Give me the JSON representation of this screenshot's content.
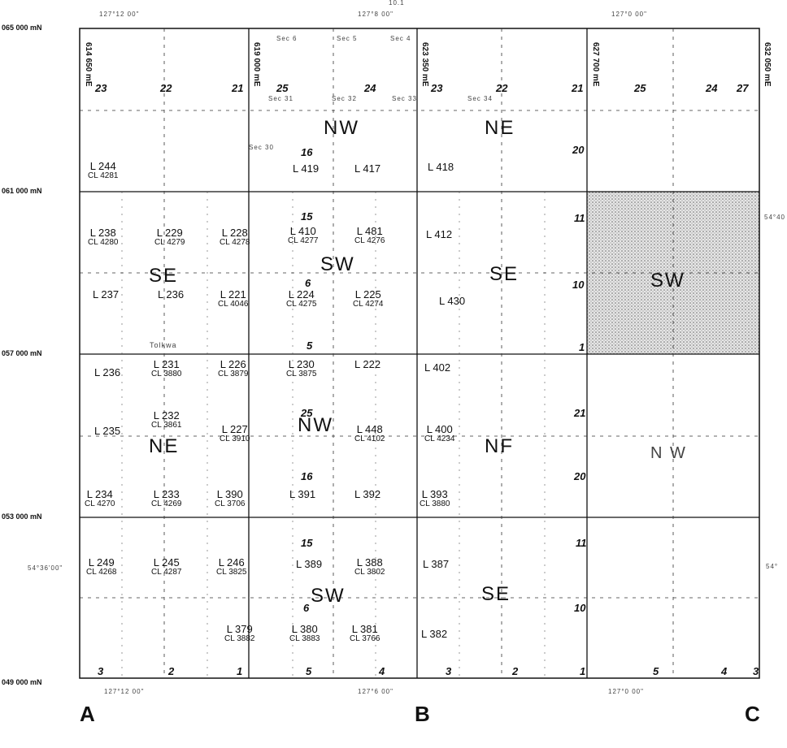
{
  "northings": [
    "065 000 mN",
    "061 000 mN",
    "057 000 mN",
    "053 000 mN",
    "049 000 mN"
  ],
  "eastings": [
    "614 650 mE",
    "619 000 mE",
    "623 350 mE",
    "627 700 mE",
    "632 050 mE"
  ],
  "longitudes_top": [
    "127°12 00\"",
    "127°8 00\"",
    "127°0 00\""
  ],
  "longitudes_bottom": [
    "127°12 00\"",
    "127°6 00\"",
    "127°0 00\""
  ],
  "top_note": "10.1",
  "latitude_left": "54°36'00\"",
  "latitude_right_upper": "54°40",
  "latitude_right_lower": "54°",
  "column_labels": [
    "A",
    "B",
    "C"
  ],
  "quadrants": [
    "NW",
    "NE",
    "SE",
    "SW",
    "SE",
    "SW",
    "NE",
    "NF",
    "NW",
    "SW",
    "SE"
  ],
  "section_numbers": [
    "23",
    "22",
    "21",
    "25",
    "24",
    "23",
    "22",
    "21",
    "25",
    "24",
    "27",
    "16",
    "20",
    "15",
    "11",
    "6",
    "10",
    "5",
    "1",
    "25",
    "21",
    "16",
    "20",
    "15",
    "11",
    "6",
    "10",
    "3",
    "2",
    "1",
    "5",
    "4",
    "3",
    "2",
    "1",
    "5",
    "4",
    "3"
  ],
  "sec_labels": [
    "Sec 6",
    "Sec 5",
    "Sec 4",
    "Sec 31",
    "Sec 32",
    "Sec 33",
    "Sec 34",
    "Sec 30"
  ],
  "lots": [
    {
      "lot": "L 244",
      "cl": "CL 4281"
    },
    {
      "lot": "L 419",
      "cl": ""
    },
    {
      "lot": "L 417",
      "cl": ""
    },
    {
      "lot": "L 418",
      "cl": ""
    },
    {
      "lot": "L 238",
      "cl": "CL 4280"
    },
    {
      "lot": "L 229",
      "cl": "CL 4279"
    },
    {
      "lot": "L 228",
      "cl": "CL 4278"
    },
    {
      "lot": "L 410",
      "cl": "CL 4277"
    },
    {
      "lot": "L 481",
      "cl": "CL 4276"
    },
    {
      "lot": "L 412",
      "cl": ""
    },
    {
      "lot": "L 237",
      "cl": ""
    },
    {
      "lot": "L 236",
      "cl": ""
    },
    {
      "lot": "L 221",
      "cl": "CL 4046"
    },
    {
      "lot": "L 224",
      "cl": "CL 4275"
    },
    {
      "lot": "L 225",
      "cl": "CL 4274"
    },
    {
      "lot": "L 430",
      "cl": ""
    },
    {
      "lot": "L 236",
      "cl": ""
    },
    {
      "lot": "L 231",
      "cl": "CL 3880"
    },
    {
      "lot": "L 226",
      "cl": "CL 3879"
    },
    {
      "lot": "L 230",
      "cl": "CL 3875"
    },
    {
      "lot": "L 222",
      "cl": ""
    },
    {
      "lot": "L 402",
      "cl": ""
    },
    {
      "lot": "L 235",
      "cl": ""
    },
    {
      "lot": "L 232",
      "cl": "CL 3861"
    },
    {
      "lot": "L 227",
      "cl": "CL 3910"
    },
    {
      "lot": "L 448",
      "cl": "CL 4102"
    },
    {
      "lot": "L 400",
      "cl": "CL 4234"
    },
    {
      "lot": "L 234",
      "cl": "CL 4270"
    },
    {
      "lot": "L 233",
      "cl": "CL 4269"
    },
    {
      "lot": "L 390",
      "cl": "CL 3706"
    },
    {
      "lot": "L 391",
      "cl": ""
    },
    {
      "lot": "L 392",
      "cl": ""
    },
    {
      "lot": "L 393",
      "cl": "CL 3880"
    },
    {
      "lot": "L 249",
      "cl": "CL 4268"
    },
    {
      "lot": "L 245",
      "cl": "CL 4287"
    },
    {
      "lot": "L 246",
      "cl": "CL 3825"
    },
    {
      "lot": "L 389",
      "cl": ""
    },
    {
      "lot": "L 388",
      "cl": "CL 3802"
    },
    {
      "lot": "L 387",
      "cl": ""
    },
    {
      "lot": "L 379",
      "cl": "CL 3882"
    },
    {
      "lot": "L 380",
      "cl": "CL 3883"
    },
    {
      "lot": "L 381",
      "cl": "CL 3766"
    },
    {
      "lot": "L 382",
      "cl": ""
    }
  ],
  "place_name": "Tolkwa",
  "shaded_quadrant_color": "#bdbdbd"
}
